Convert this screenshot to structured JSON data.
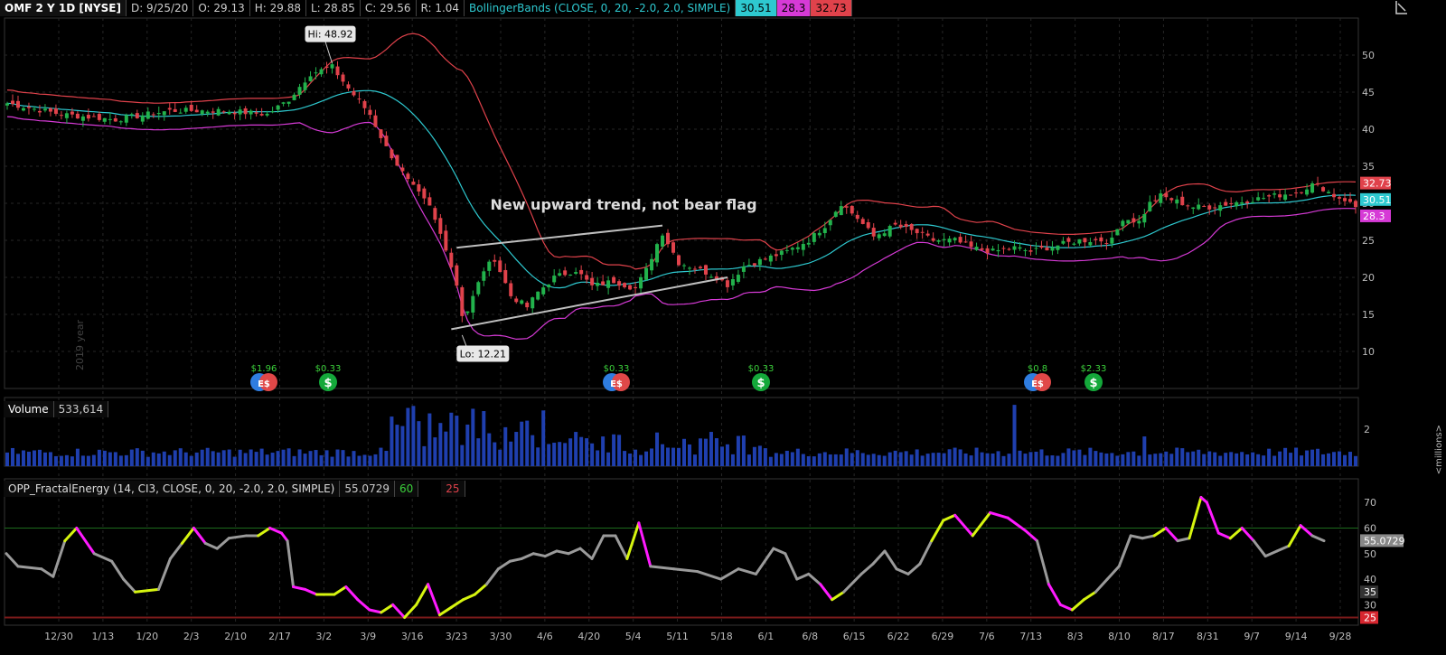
{
  "header": {
    "symbol": "OMF 2 Y 1D [NYSE]",
    "date": "D: 9/25/20",
    "open": "O: 29.13",
    "high": "H: 29.88",
    "low": "L: 28.85",
    "close": "C: 29.56",
    "range": "R: 1.04",
    "bb_label": "BollingerBands (CLOSE, 0, 20, -2.0, 2.0, SIMPLE)",
    "bb_mid": "30.51",
    "bb_low": "28.3",
    "bb_up": "32.73"
  },
  "colors": {
    "up": "#22b24c",
    "down": "#e0424b",
    "upper_band": "#e0424b",
    "mid_band": "#2ec9d0",
    "lower_band": "#d63ad6",
    "volume": "#1f3fae",
    "fe_gray": "#9a9a9a",
    "fe_magenta": "#ff1aff",
    "fe_yellow": "#d6f50f",
    "trend": "#bfbfbf"
  },
  "annotations": {
    "hi": "Hi: 48.92",
    "lo": "Lo: 12.21",
    "note": "New upward trend, not bear flag",
    "watermark": "2019 year"
  },
  "events": [
    {
      "label": "$1.96",
      "type": "dividend-earnings",
      "date": "2/10"
    },
    {
      "label": "$0.33",
      "type": "dividend",
      "date": "2/24"
    },
    {
      "label": "$0.33",
      "type": "dividend-earnings",
      "date": "4/30"
    },
    {
      "label": "$0.33",
      "type": "dividend",
      "date": "5/29"
    },
    {
      "label": "$0.8",
      "type": "dividend-earnings",
      "date": "7/30"
    },
    {
      "label": "$2.33",
      "type": "dividend",
      "date": "8/10"
    }
  ],
  "volume": {
    "label": "Volume",
    "value": "533,614",
    "unit": "<millions>"
  },
  "fractal": {
    "label": "OPP_FractalEnergy (14, CI3, CLOSE, 0, 20, -2.0, 2.0, SIMPLE)",
    "value": "55.0729",
    "hi_level": "60",
    "lo_level": "25"
  },
  "chart_data": [
    {
      "type": "candlestick",
      "title": "OMF 2 Y 1D [NYSE]",
      "x_ticks": [
        "12/30",
        "1/13",
        "1/20",
        "2/3",
        "2/10",
        "2/17",
        "3/2",
        "3/9",
        "3/16",
        "3/23",
        "3/30",
        "4/6",
        "4/20",
        "5/4",
        "5/11",
        "5/18",
        "6/1",
        "6/8",
        "6/15",
        "6/22",
        "6/29",
        "7/6",
        "7/13",
        "8/3",
        "8/10",
        "8/17",
        "8/31",
        "9/7",
        "9/14",
        "9/28"
      ],
      "y_ticks": [
        10,
        15,
        20,
        25,
        30,
        35,
        40,
        45,
        50
      ],
      "ylim": [
        5,
        55
      ],
      "price_labels": {
        "upper": "32.73",
        "middle": "30.51",
        "lower": "28.3"
      },
      "close_anchors": [
        [
          0,
          43.5
        ],
        [
          10,
          42
        ],
        [
          20,
          41.3
        ],
        [
          30,
          42.5
        ],
        [
          40,
          42.5
        ],
        [
          48,
          42
        ],
        [
          52,
          44
        ],
        [
          56,
          47.5
        ],
        [
          60,
          48.4
        ],
        [
          63,
          45.5
        ],
        [
          67,
          42
        ],
        [
          70,
          37.5
        ],
        [
          74,
          33
        ],
        [
          78,
          29.5
        ],
        [
          81,
          24
        ],
        [
          83,
          19
        ],
        [
          84,
          15
        ],
        [
          85,
          15.5
        ],
        [
          88,
          21
        ],
        [
          90,
          22.5
        ],
        [
          93,
          17.5
        ],
        [
          96,
          16
        ],
        [
          98,
          18
        ],
        [
          101,
          20
        ],
        [
          105,
          21
        ],
        [
          108,
          18.8
        ],
        [
          112,
          19.5
        ],
        [
          116,
          18.5
        ],
        [
          118,
          21
        ],
        [
          120,
          24.5
        ],
        [
          121,
          26
        ],
        [
          124,
          22
        ],
        [
          128,
          21
        ],
        [
          131,
          20
        ],
        [
          133,
          19
        ],
        [
          136,
          21.5
        ],
        [
          140,
          22.5
        ],
        [
          144,
          23.5
        ],
        [
          148,
          25
        ],
        [
          151,
          27
        ],
        [
          153,
          29
        ],
        [
          154,
          30
        ],
        [
          157,
          28
        ],
        [
          160,
          25.5
        ],
        [
          164,
          27
        ],
        [
          168,
          26
        ],
        [
          171,
          25
        ],
        [
          175,
          25
        ],
        [
          178,
          24
        ],
        [
          182,
          23.5
        ],
        [
          186,
          24
        ],
        [
          189,
          23.5
        ],
        [
          192,
          24
        ],
        [
          195,
          24.5
        ],
        [
          198,
          25
        ],
        [
          201,
          25
        ],
        [
          204,
          25
        ],
        [
          206,
          28
        ],
        [
          209,
          27.5
        ],
        [
          211,
          30
        ],
        [
          213,
          31
        ],
        [
          215,
          30.5
        ],
        [
          217,
          30
        ],
        [
          219,
          29.5
        ],
        [
          222,
          29.5
        ],
        [
          226,
          30
        ],
        [
          230,
          30.5
        ],
        [
          234,
          31
        ],
        [
          238,
          31.5
        ],
        [
          241,
          32.5
        ],
        [
          243,
          32
        ],
        [
          245,
          31
        ],
        [
          247,
          30.5
        ],
        [
          249,
          29.5
        ],
        [
          250,
          29.5
        ]
      ],
      "bollinger": {
        "upper_start": 44.5,
        "upper_peak": 53,
        "middle_last": 30.51,
        "lower_min": 10,
        "lower_last": 28.3
      }
    },
    {
      "type": "bar",
      "title": "Volume",
      "ylabel": "<millions>",
      "y_ticks": [
        2
      ],
      "ylim": [
        0,
        3.5
      ],
      "current": 533614
    },
    {
      "type": "line",
      "title": "OPP_FractalEnergy",
      "y_ticks": [
        30,
        40,
        50,
        60,
        70
      ],
      "ylim": [
        22,
        75
      ],
      "levels": [
        60,
        25
      ],
      "current": 55.0729,
      "anchors": [
        [
          0,
          50
        ],
        [
          2,
          45
        ],
        [
          6,
          44
        ],
        [
          8,
          41
        ],
        [
          10,
          55
        ],
        [
          12,
          60
        ],
        [
          15,
          50
        ],
        [
          18,
          47
        ],
        [
          20,
          40
        ],
        [
          22,
          35
        ],
        [
          26,
          36
        ],
        [
          28,
          48
        ],
        [
          30,
          54
        ],
        [
          32,
          60
        ],
        [
          34,
          54
        ],
        [
          36,
          52
        ],
        [
          38,
          56
        ],
        [
          41,
          57
        ],
        [
          43,
          57
        ],
        [
          45,
          60
        ],
        [
          47,
          58
        ],
        [
          48,
          55
        ],
        [
          49,
          37
        ],
        [
          51,
          36
        ],
        [
          53,
          34
        ],
        [
          56,
          34
        ],
        [
          58,
          37
        ],
        [
          60,
          32
        ],
        [
          62,
          28
        ],
        [
          64,
          27
        ],
        [
          66,
          30
        ],
        [
          68,
          25
        ],
        [
          70,
          30
        ],
        [
          72,
          38
        ],
        [
          74,
          26
        ],
        [
          76,
          29
        ],
        [
          78,
          32
        ],
        [
          80,
          34
        ],
        [
          82,
          38
        ],
        [
          84,
          44
        ],
        [
          86,
          47
        ],
        [
          88,
          48
        ],
        [
          90,
          50
        ],
        [
          92,
          49
        ],
        [
          94,
          51
        ],
        [
          96,
          50
        ],
        [
          98,
          52
        ],
        [
          100,
          48
        ],
        [
          102,
          57
        ],
        [
          104,
          57
        ],
        [
          106,
          48
        ],
        [
          108,
          62
        ],
        [
          110,
          45
        ],
        [
          114,
          44
        ],
        [
          118,
          43
        ],
        [
          122,
          40
        ],
        [
          125,
          44
        ],
        [
          128,
          42
        ],
        [
          131,
          52
        ],
        [
          133,
          50
        ],
        [
          135,
          40
        ],
        [
          137,
          42
        ],
        [
          139,
          38
        ],
        [
          141,
          32
        ],
        [
          143,
          35
        ],
        [
          146,
          42
        ],
        [
          148,
          46
        ],
        [
          150,
          51
        ],
        [
          152,
          44
        ],
        [
          154,
          42
        ],
        [
          156,
          46
        ],
        [
          158,
          55
        ],
        [
          160,
          63
        ],
        [
          162,
          65
        ],
        [
          165,
          57
        ],
        [
          168,
          66
        ],
        [
          171,
          64
        ],
        [
          174,
          59
        ],
        [
          176,
          55
        ],
        [
          178,
          38
        ],
        [
          180,
          30
        ],
        [
          182,
          28
        ],
        [
          184,
          32
        ],
        [
          186,
          35
        ],
        [
          188,
          40
        ],
        [
          190,
          45
        ],
        [
          192,
          57
        ],
        [
          194,
          56
        ],
        [
          196,
          57
        ],
        [
          198,
          60
        ],
        [
          200,
          55
        ],
        [
          202,
          56
        ],
        [
          204,
          72
        ],
        [
          205,
          70
        ],
        [
          207,
          58
        ],
        [
          209,
          56
        ],
        [
          211,
          60
        ],
        [
          213,
          55
        ],
        [
          215,
          49
        ],
        [
          217,
          51
        ],
        [
          219,
          53
        ],
        [
          221,
          61
        ],
        [
          223,
          57
        ],
        [
          225,
          55
        ]
      ]
    }
  ]
}
